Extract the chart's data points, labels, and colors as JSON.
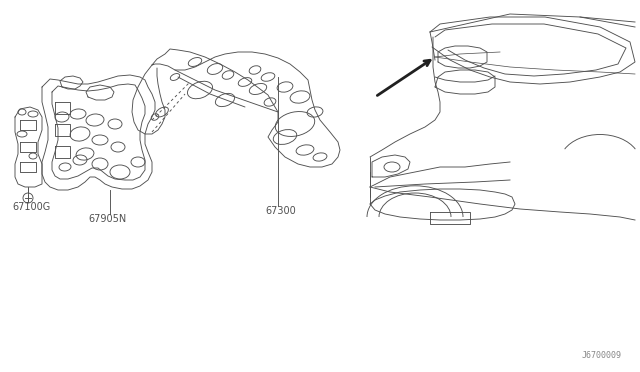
{
  "bg_color": "#ffffff",
  "line_color": "#505050",
  "text_color": "#505050",
  "diagram_code": "J6700009",
  "figsize": [
    6.4,
    3.72
  ],
  "dpi": 100,
  "lw": 0.65,
  "font_size": 7.0
}
